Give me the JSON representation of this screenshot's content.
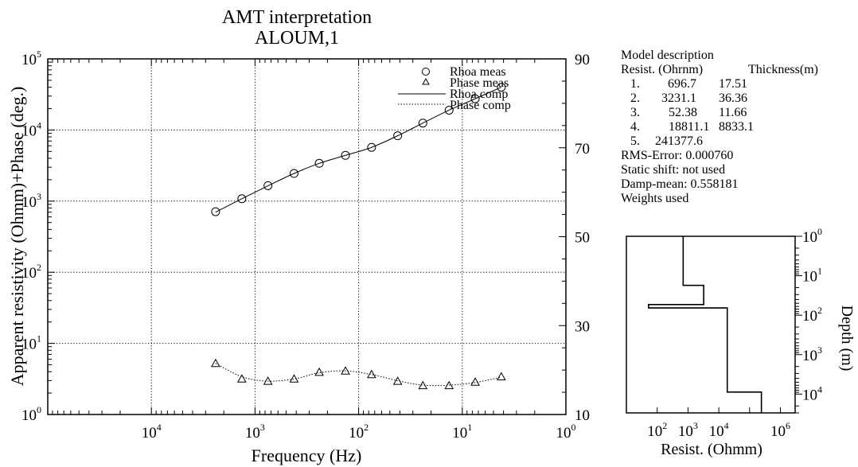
{
  "chart_data": [
    {
      "type": "scatter",
      "title": "AMT interpretation",
      "subtitle": "ALOUM,1",
      "xlabel": "Frequency (Hz)",
      "ylabel": "Apparent resistivity (Ohmm)+Phase (deg.)",
      "x_scale": "log",
      "x_reversed": true,
      "xlim": [
        100000,
        1
      ],
      "y_scale": "log",
      "ylim": [
        1,
        100000
      ],
      "y2lim": [
        10,
        90
      ],
      "grid": true,
      "x_ticks": [
        {
          "base": "10",
          "exp": "4"
        },
        {
          "base": "10",
          "exp": "3"
        },
        {
          "base": "10",
          "exp": "2"
        },
        {
          "base": "10",
          "exp": "1"
        },
        {
          "base": "10",
          "exp": "0"
        }
      ],
      "y_ticks": [
        {
          "base": "10",
          "exp": "0"
        },
        {
          "base": "10",
          "exp": "1"
        },
        {
          "base": "10",
          "exp": "2"
        },
        {
          "base": "10",
          "exp": "3"
        },
        {
          "base": "10",
          "exp": "4"
        },
        {
          "base": "10",
          "exp": "5"
        }
      ],
      "y2_ticks": [
        "10",
        "30",
        "50",
        "70",
        "90"
      ],
      "legend": [
        "Rhoa meas",
        "Phase meas",
        "Rhoa comp",
        "Phase comp"
      ],
      "legend_position": "top-right",
      "series": [
        {
          "name": "Rhoa meas",
          "marker": "circle",
          "x": [
            2400,
            1340,
            750,
            420,
            240,
            134,
            75,
            42,
            24,
            13.4,
            7.5,
            4.2
          ],
          "y": [
            710,
            1080,
            1650,
            2450,
            3400,
            4400,
            5700,
            8300,
            12500,
            19000,
            27500,
            40000
          ]
        },
        {
          "name": "Phase meas",
          "marker": "triangle",
          "axis": "right",
          "x": [
            2400,
            1340,
            750,
            420,
            240,
            134,
            75,
            42,
            24,
            13.4,
            7.5,
            4.2
          ],
          "y": [
            21.5,
            18.0,
            17.5,
            18.0,
            19.5,
            19.8,
            19.0,
            17.5,
            16.5,
            16.5,
            17.3,
            18.5
          ]
        },
        {
          "name": "Rhoa comp",
          "style": "solid",
          "x": [
            2400,
            1340,
            750,
            420,
            240,
            134,
            75,
            42,
            24,
            13.4,
            7.5,
            4.2
          ],
          "y": [
            700,
            1080,
            1640,
            2450,
            3400,
            4400,
            5700,
            8300,
            12500,
            19000,
            27500,
            40000
          ]
        },
        {
          "name": "Phase comp",
          "style": "dotted",
          "axis": "right",
          "x": [
            2400,
            1340,
            750,
            420,
            240,
            134,
            75,
            42,
            24,
            13.4,
            7.5,
            4.2
          ],
          "y": [
            21.5,
            18.5,
            17.5,
            18.0,
            19.4,
            19.8,
            19.0,
            17.6,
            16.6,
            16.6,
            17.2,
            18.4
          ]
        }
      ]
    },
    {
      "type": "line",
      "xlabel": "Resist. (Ohmm)",
      "ylabel": "Depth (m)",
      "x_scale": "log",
      "xlim": [
        10,
        3000000
      ],
      "y_scale": "log",
      "ylim": [
        1,
        30000
      ],
      "x_ticks": [
        {
          "base": "10",
          "exp": "2"
        },
        {
          "base": "10",
          "exp": "3"
        },
        {
          "base": "10",
          "exp": "4"
        },
        {
          "base": "10",
          "exp": "6"
        }
      ],
      "y_ticks": [
        {
          "base": "10",
          "exp": "0"
        },
        {
          "base": "10",
          "exp": "1"
        },
        {
          "base": "10",
          "exp": "2"
        },
        {
          "base": "10",
          "exp": "3"
        },
        {
          "base": "10",
          "exp": "4"
        }
      ],
      "series": [
        {
          "name": "",
          "style": "solid",
          "resistivity": [
            696.7,
            3231.1,
            52.38,
            18811.1,
            241377.6
          ],
          "depth_boundaries": [
            17.51,
            53.87,
            65.53,
            8898.63
          ]
        },
        {
          "name": "",
          "style": "dotted",
          "resistivity": [
            700,
            3240,
            52.4,
            18800,
            241000
          ],
          "depth_boundaries": [
            17.4,
            54.0,
            65.6,
            8900
          ]
        }
      ]
    }
  ],
  "model": {
    "heading": "Model description",
    "col_resist": "Resist. (Ohrnm)",
    "col_thick": "Thickness(m)",
    "rows": [
      {
        "n": "1.",
        "resist": "696.7",
        "thick": "17.51"
      },
      {
        "n": "2.",
        "resist": "3231.1",
        "thick": "36.36"
      },
      {
        "n": "3.",
        "resist": "52.38",
        "thick": "11.66"
      },
      {
        "n": "4.",
        "resist": "18811.1",
        "thick": "8833.1"
      },
      {
        "n": "5.",
        "resist": "241377.6",
        "thick": ""
      }
    ],
    "rms": "RMS-Error: 0.000760",
    "static": "Static shift: not used",
    "damp": "Damp-mean: 0.558181",
    "weights": "Weights used"
  }
}
